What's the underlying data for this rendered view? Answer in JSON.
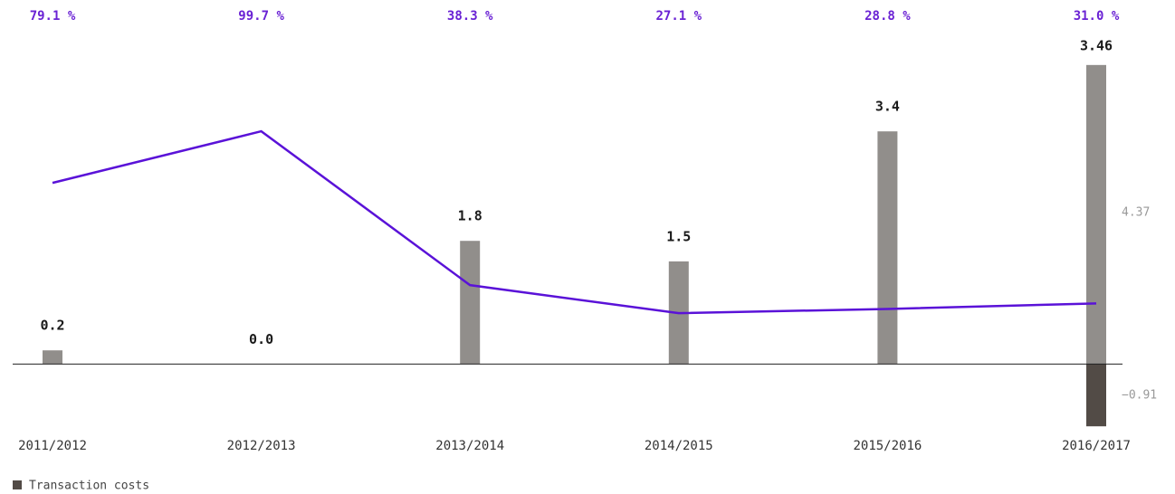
{
  "chart_data": {
    "type": "bar",
    "categories": [
      "2011/2012",
      "2012/2013",
      "2013/2014",
      "2014/2015",
      "2015/2016",
      "2016/2017"
    ],
    "ylim": [
      -1,
      4.5
    ],
    "y2lim": [
      -20.5,
      129.7
    ],
    "series": [
      {
        "color": "#918e8b",
        "values": [
          0.2,
          0.0,
          1.8,
          1.5,
          3.4,
          4.37
        ],
        "value_labels": [
          "0.2",
          "0.0",
          "1.8",
          "1.5",
          "3.4",
          "4.37"
        ]
      },
      {
        "name": "Transaction costs",
        "color": "#524b46",
        "values": [
          null,
          null,
          null,
          null,
          null,
          -0.91
        ],
        "value_labels": [
          null,
          null,
          null,
          null,
          null,
          "−0.91"
        ]
      },
      {
        "type": "line",
        "axis": "y2",
        "color": "#5a12d8",
        "values": [
          79.1,
          99.7,
          38.3,
          27.1,
          28.8,
          31.0
        ],
        "value_labels": [
          "79.1 %",
          "99.7 %",
          "38.3 %",
          "27.1 %",
          "28.8 %",
          "31.0 %"
        ]
      }
    ],
    "totals": [
      null,
      null,
      null,
      null,
      null,
      3.46
    ],
    "total_labels": [
      null,
      null,
      null,
      null,
      null,
      "3.46"
    ]
  }
}
